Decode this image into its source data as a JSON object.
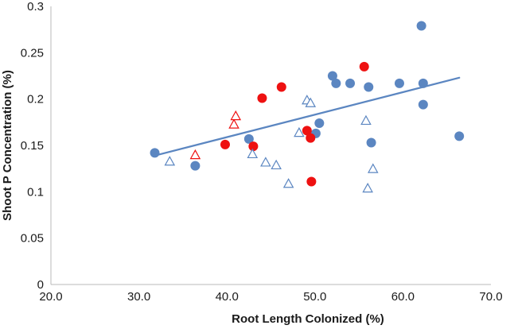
{
  "chart_data": {
    "type": "scatter",
    "title": "",
    "xlabel": "Root Length Colonized (%)",
    "ylabel": "Shoot P Concentration (%)",
    "xlim": [
      20,
      70
    ],
    "ylim": [
      0,
      0.3
    ],
    "x_ticks": [
      "20.0",
      "30.0",
      "40.0",
      "50.0",
      "60.0",
      "70.0"
    ],
    "y_ticks": [
      "0",
      "0.05",
      "0.1",
      "0.15",
      "0.2",
      "0.25",
      "0.3"
    ],
    "grid": false,
    "colors": {
      "blue": "#5b86c1",
      "red": "#ee1111",
      "trendline": "#5b86c1"
    },
    "series": [
      {
        "name": "blue filled circles",
        "marker": "circle-filled",
        "color": "#5b86c1",
        "points": [
          [
            31.8,
            0.142
          ],
          [
            36.4,
            0.128
          ],
          [
            42.5,
            0.157
          ],
          [
            50.1,
            0.163
          ],
          [
            50.5,
            0.174
          ],
          [
            52.0,
            0.225
          ],
          [
            52.4,
            0.217
          ],
          [
            54.0,
            0.217
          ],
          [
            56.1,
            0.213
          ],
          [
            56.4,
            0.153
          ],
          [
            59.6,
            0.217
          ],
          [
            62.1,
            0.279
          ],
          [
            62.3,
            0.217
          ],
          [
            62.3,
            0.194
          ],
          [
            66.4,
            0.16
          ]
        ]
      },
      {
        "name": "red filled circles",
        "marker": "circle-filled",
        "color": "#ee1111",
        "points": [
          [
            39.8,
            0.151
          ],
          [
            43.0,
            0.149
          ],
          [
            44.0,
            0.201
          ],
          [
            46.2,
            0.213
          ],
          [
            49.1,
            0.166
          ],
          [
            49.5,
            0.158
          ],
          [
            49.6,
            0.111
          ],
          [
            55.6,
            0.235
          ]
        ]
      },
      {
        "name": "blue open triangles",
        "marker": "triangle-open",
        "color": "#5b86c1",
        "points": [
          [
            33.5,
            0.133
          ],
          [
            42.9,
            0.141
          ],
          [
            44.4,
            0.132
          ],
          [
            45.6,
            0.129
          ],
          [
            47.0,
            0.109
          ],
          [
            48.2,
            0.164
          ],
          [
            49.1,
            0.199
          ],
          [
            49.5,
            0.196
          ],
          [
            55.8,
            0.177
          ],
          [
            56.0,
            0.104
          ],
          [
            56.6,
            0.125
          ]
        ]
      },
      {
        "name": "red open triangles",
        "marker": "triangle-open",
        "color": "#ee1111",
        "points": [
          [
            36.4,
            0.14
          ],
          [
            40.8,
            0.173
          ],
          [
            41.0,
            0.182
          ]
        ]
      }
    ],
    "trendline": {
      "type": "linear",
      "x": [
        31.8,
        66.4
      ],
      "y": [
        0.139,
        0.223
      ],
      "color": "#5b86c1"
    }
  }
}
